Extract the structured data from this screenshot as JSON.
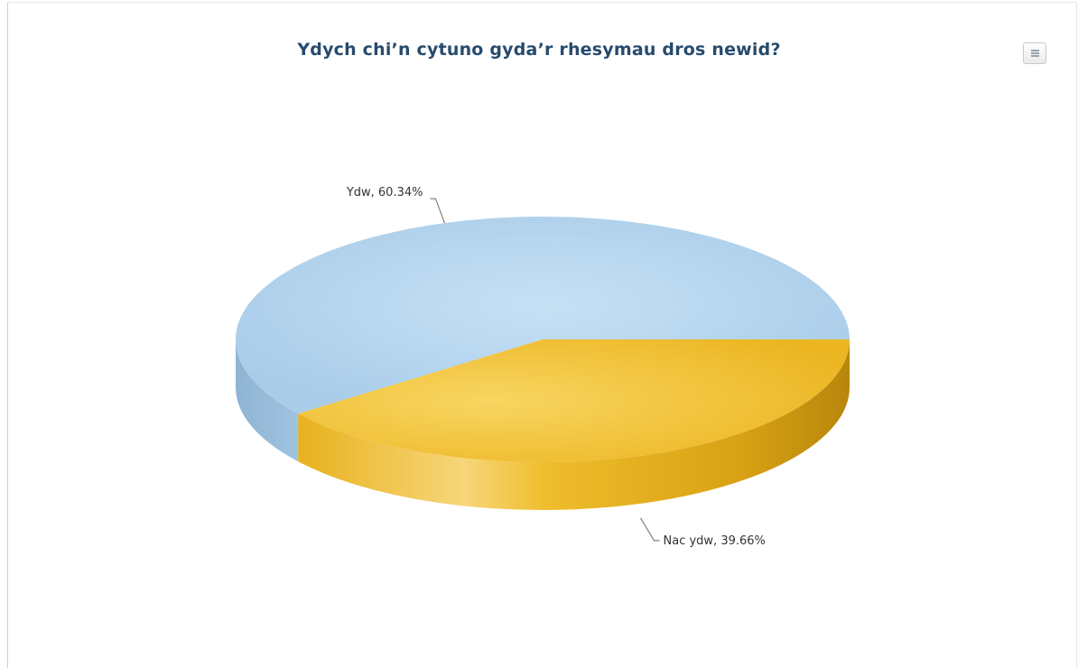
{
  "chart_data": {
    "type": "pie",
    "title": "Ydych chi’n cytuno gyda’r rhesymau dros newid?",
    "slices": [
      {
        "name": "Ydw",
        "value": 60.34,
        "color": "#b5d6f0",
        "label": "Ydw, 60.34%"
      },
      {
        "name": "Nac ydw",
        "value": 39.66,
        "color": "#efbf35",
        "label": "Nac ydw, 39.66%"
      }
    ],
    "style": "3d"
  },
  "toolbar": {
    "menu_icon": "hamburger-menu-icon"
  }
}
